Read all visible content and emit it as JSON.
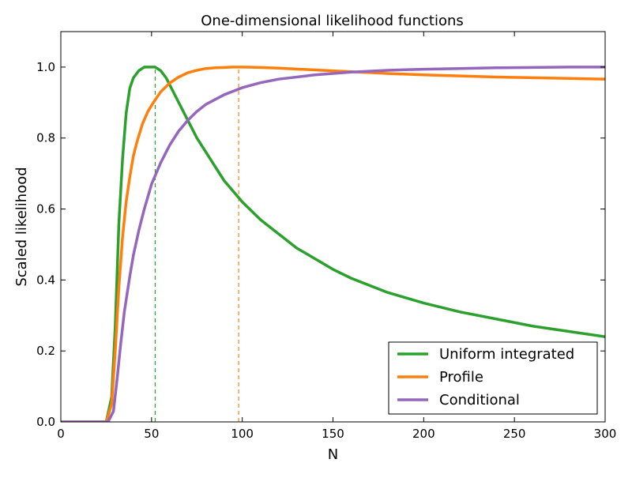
{
  "chart_data": {
    "type": "line",
    "title": "One-dimensional likelihood functions",
    "xlabel": "N",
    "ylabel": "Scaled likelihood",
    "xlim": [
      0,
      300
    ],
    "ylim": [
      0,
      1.1
    ],
    "xticks": [
      "0",
      "50",
      "100",
      "150",
      "200",
      "250",
      "300"
    ],
    "yticks": [
      "0.0",
      "0.2",
      "0.4",
      "0.6",
      "0.8",
      "1.0"
    ],
    "grid": false,
    "legend_position": "lower-right",
    "series": [
      {
        "name": "Uniform integrated",
        "color": "#2ca02c",
        "x": [
          0,
          25,
          28,
          30,
          32,
          34,
          36,
          38,
          40,
          43,
          46,
          49,
          52,
          55,
          58,
          61,
          65,
          70,
          75,
          80,
          90,
          100,
          110,
          120,
          130,
          140,
          150,
          160,
          170,
          180,
          190,
          200,
          220,
          240,
          260,
          280,
          300
        ],
        "y": [
          0,
          0,
          0.07,
          0.27,
          0.56,
          0.74,
          0.87,
          0.94,
          0.97,
          0.99,
          1.0,
          1.0,
          1.0,
          0.99,
          0.97,
          0.94,
          0.9,
          0.85,
          0.8,
          0.76,
          0.68,
          0.62,
          0.57,
          0.53,
          0.49,
          0.46,
          0.43,
          0.405,
          0.385,
          0.365,
          0.35,
          0.335,
          0.31,
          0.29,
          0.27,
          0.255,
          0.24
        ]
      },
      {
        "name": "Profile",
        "color": "#ff7f0e",
        "x": [
          0,
          25,
          28,
          30,
          32,
          34,
          36,
          38,
          40,
          42,
          45,
          48,
          51,
          55,
          60,
          65,
          70,
          75,
          80,
          85,
          90,
          95,
          100,
          110,
          120,
          140,
          160,
          180,
          200,
          220,
          240,
          260,
          280,
          300
        ],
        "y": [
          0,
          0,
          0.05,
          0.2,
          0.38,
          0.52,
          0.62,
          0.69,
          0.75,
          0.79,
          0.84,
          0.875,
          0.9,
          0.93,
          0.955,
          0.972,
          0.984,
          0.991,
          0.996,
          0.998,
          0.999,
          1.0,
          1.0,
          0.999,
          0.997,
          0.992,
          0.987,
          0.982,
          0.978,
          0.975,
          0.972,
          0.97,
          0.968,
          0.966
        ]
      },
      {
        "name": "Conditional",
        "color": "#9467bd",
        "x": [
          0,
          26,
          29,
          31,
          33,
          35,
          38,
          40,
          43,
          46,
          50,
          55,
          60,
          65,
          70,
          75,
          80,
          90,
          100,
          110,
          120,
          140,
          160,
          180,
          200,
          220,
          240,
          260,
          280,
          300
        ],
        "y": [
          0,
          0,
          0.03,
          0.12,
          0.22,
          0.31,
          0.41,
          0.47,
          0.54,
          0.6,
          0.67,
          0.73,
          0.78,
          0.82,
          0.85,
          0.875,
          0.895,
          0.922,
          0.942,
          0.956,
          0.966,
          0.978,
          0.986,
          0.991,
          0.994,
          0.996,
          0.998,
          0.999,
          1.0,
          1.0
        ]
      }
    ],
    "reference_lines": [
      {
        "x": 52,
        "color": "#2ca02c",
        "style": "dashed"
      },
      {
        "x": 98,
        "color": "#ff7f0e",
        "style": "dashed"
      }
    ]
  }
}
